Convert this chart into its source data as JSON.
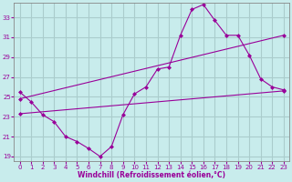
{
  "title": "",
  "xlabel": "Windchill (Refroidissement éolien,°C)",
  "ylabel": "",
  "background_color": "#c8ecec",
  "line_color": "#990099",
  "grid_color": "#aacccc",
  "x_ticks": [
    0,
    1,
    2,
    3,
    4,
    5,
    6,
    7,
    8,
    9,
    10,
    11,
    12,
    13,
    14,
    15,
    16,
    17,
    18,
    19,
    20,
    21,
    22,
    23
  ],
  "y_ticks": [
    19,
    21,
    23,
    25,
    27,
    29,
    31,
    33
  ],
  "xlim": [
    -0.5,
    23.5
  ],
  "ylim": [
    18.5,
    34.5
  ],
  "line1_x": [
    0,
    1,
    2,
    3,
    4,
    5,
    6,
    7,
    8,
    9,
    10,
    11,
    12,
    13,
    14,
    15,
    16,
    17,
    18,
    19,
    20,
    21,
    22,
    23
  ],
  "line1_y": [
    25.5,
    24.5,
    23.2,
    22.5,
    21.0,
    20.5,
    19.8,
    19.0,
    20.0,
    23.2,
    25.3,
    26.0,
    27.8,
    28.0,
    31.2,
    33.8,
    34.3,
    32.7,
    31.2,
    31.2,
    29.2,
    26.8,
    26.0,
    25.7
  ],
  "line2_x": [
    0,
    23
  ],
  "line2_y": [
    23.3,
    25.6
  ],
  "line3_x": [
    0,
    23
  ],
  "line3_y": [
    24.8,
    31.2
  ]
}
